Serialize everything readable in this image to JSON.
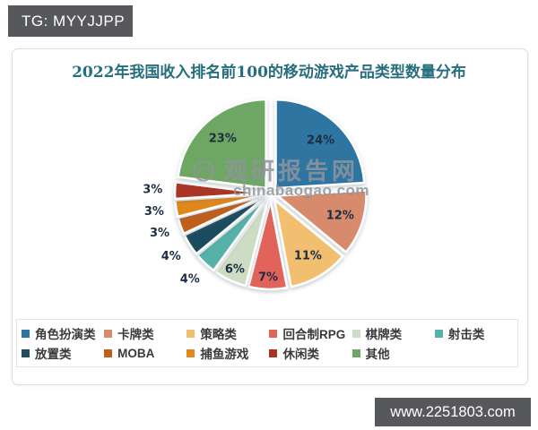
{
  "badges": {
    "top_left": "TG: MYYJJPP",
    "bottom_right": "www.2251803.com"
  },
  "watermark": {
    "site_name": "观研报告网",
    "domain": "chinabaogao.com"
  },
  "chart_data": {
    "type": "pie",
    "title": "2022年我国收入排名前100的移动游戏产品类型数量分布",
    "title_color": "#266e7e",
    "unit": "%",
    "start_angle_deg": 0,
    "direction": "clockwise",
    "exploded": true,
    "legend_position": "bottom",
    "slices": [
      {
        "label": "角色扮演类",
        "value": 24,
        "color": "#2d74a1"
      },
      {
        "label": "卡牌类",
        "value": 12,
        "color": "#d88a6d"
      },
      {
        "label": "策略类",
        "value": 11,
        "color": "#f2bf70"
      },
      {
        "label": "回合制RPG",
        "value": 7,
        "color": "#e2635a"
      },
      {
        "label": "棋牌类",
        "value": 6,
        "color": "#cedcc3"
      },
      {
        "label": "射击类",
        "value": 4,
        "color": "#56b1a8"
      },
      {
        "label": "放置类",
        "value": 4,
        "color": "#1e4c61"
      },
      {
        "label": "MOBA",
        "value": 3,
        "color": "#c05e1f"
      },
      {
        "label": "捕鱼游戏",
        "value": 3,
        "color": "#e0871f"
      },
      {
        "label": "休闲类",
        "value": 3,
        "color": "#a93425"
      },
      {
        "label": "其他",
        "value": 23,
        "color": "#6ea763"
      }
    ]
  }
}
